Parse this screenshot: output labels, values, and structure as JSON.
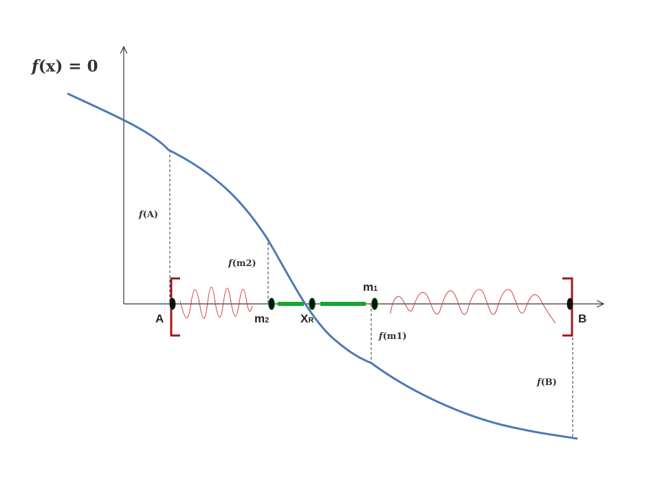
{
  "diagram": {
    "equation": {
      "f": "f",
      "rest": "(x) = 0"
    },
    "points": {
      "a": "A",
      "b": "B",
      "m1": {
        "base": "m",
        "sub": "1"
      },
      "m2": {
        "base": "m",
        "sub": "2"
      },
      "xr": {
        "base": "X",
        "sub": "R"
      }
    },
    "value_labels": {
      "fa": {
        "f": "f",
        "rest": "(A)"
      },
      "fm2": {
        "f": "f",
        "rest": "(m2)"
      },
      "fm1": {
        "f": "f",
        "rest": "(m1)"
      },
      "fb": {
        "f": "f",
        "rest": "(B)"
      }
    },
    "colors": {
      "curve": "#4a7ab5",
      "axes": "#333333",
      "bracket": "#a01818",
      "squiggle": "#d33a3a",
      "root_interval": "#17a52c",
      "root_glow": "#9be87f",
      "point": "#111111",
      "guide": "#333333"
    }
  }
}
